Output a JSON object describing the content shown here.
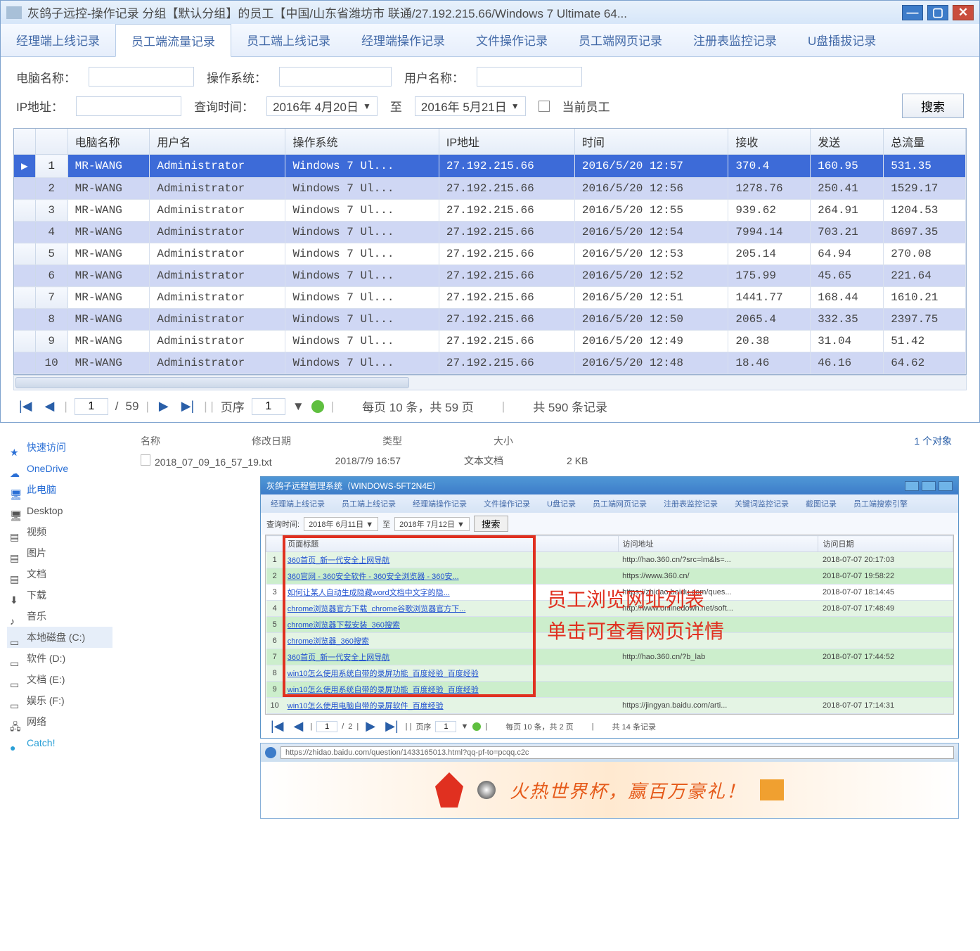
{
  "win1": {
    "title": "灰鸽子远控-操作记录 分组【默认分组】的员工【中国/山东省潍坊市 联通/27.192.215.66/Windows 7 Ultimate 64...",
    "tabs": [
      "经理端上线记录",
      "员工端流量记录",
      "员工端上线记录",
      "经理端操作记录",
      "文件操作记录",
      "员工端网页记录",
      "注册表监控记录",
      "U盘插拔记录"
    ],
    "active_tab": 1,
    "filters": {
      "pc_label": "电脑名称：",
      "os_label": "操作系统：",
      "user_label": "用户名称：",
      "ip_label": "IP地址：",
      "query_label": "查询时间：",
      "date_from": "2016年 4月20日",
      "to": "至",
      "date_to": "2016年 5月21日",
      "cur_emp": "当前员工",
      "search": "搜索"
    },
    "columns": [
      "",
      "",
      "电脑名称",
      "用户名",
      "操作系统",
      "IP地址",
      "时间",
      "接收",
      "发送",
      "总流量"
    ],
    "rows": [
      {
        "n": 1,
        "pc": "MR-WANG",
        "user": "Administrator",
        "os": "Windows 7 Ul...",
        "ip": "27.192.215.66",
        "time": "2016/5/20 12:57",
        "recv": "370.4",
        "send": "160.95",
        "total": "531.35",
        "sel": true
      },
      {
        "n": 2,
        "pc": "MR-WANG",
        "user": "Administrator",
        "os": "Windows 7 Ul...",
        "ip": "27.192.215.66",
        "time": "2016/5/20 12:56",
        "recv": "1278.76",
        "send": "250.41",
        "total": "1529.17",
        "alt": true
      },
      {
        "n": 3,
        "pc": "MR-WANG",
        "user": "Administrator",
        "os": "Windows 7 Ul...",
        "ip": "27.192.215.66",
        "time": "2016/5/20 12:55",
        "recv": "939.62",
        "send": "264.91",
        "total": "1204.53"
      },
      {
        "n": 4,
        "pc": "MR-WANG",
        "user": "Administrator",
        "os": "Windows 7 Ul...",
        "ip": "27.192.215.66",
        "time": "2016/5/20 12:54",
        "recv": "7994.14",
        "send": "703.21",
        "total": "8697.35",
        "alt": true
      },
      {
        "n": 5,
        "pc": "MR-WANG",
        "user": "Administrator",
        "os": "Windows 7 Ul...",
        "ip": "27.192.215.66",
        "time": "2016/5/20 12:53",
        "recv": "205.14",
        "send": "64.94",
        "total": "270.08"
      },
      {
        "n": 6,
        "pc": "MR-WANG",
        "user": "Administrator",
        "os": "Windows 7 Ul...",
        "ip": "27.192.215.66",
        "time": "2016/5/20 12:52",
        "recv": "175.99",
        "send": "45.65",
        "total": "221.64",
        "alt": true
      },
      {
        "n": 7,
        "pc": "MR-WANG",
        "user": "Administrator",
        "os": "Windows 7 Ul...",
        "ip": "27.192.215.66",
        "time": "2016/5/20 12:51",
        "recv": "1441.77",
        "send": "168.44",
        "total": "1610.21"
      },
      {
        "n": 8,
        "pc": "MR-WANG",
        "user": "Administrator",
        "os": "Windows 7 Ul...",
        "ip": "27.192.215.66",
        "time": "2016/5/20 12:50",
        "recv": "2065.4",
        "send": "332.35",
        "total": "2397.75",
        "alt": true
      },
      {
        "n": 9,
        "pc": "MR-WANG",
        "user": "Administrator",
        "os": "Windows 7 Ul...",
        "ip": "27.192.215.66",
        "time": "2016/5/20 12:49",
        "recv": "20.38",
        "send": "31.04",
        "total": "51.42"
      },
      {
        "n": 10,
        "pc": "MR-WANG",
        "user": "Administrator",
        "os": "Windows 7 Ul...",
        "ip": "27.192.215.66",
        "time": "2016/5/20 12:48",
        "recv": "18.46",
        "send": "46.16",
        "total": "64.62",
        "alt": true
      }
    ],
    "pager": {
      "page": "1",
      "total": "59",
      "order_label": "页序",
      "order": "1",
      "per_page": "每页 10 条，共 59 页",
      "records": "共 590 条记录"
    }
  },
  "explorer": {
    "side": [
      {
        "label": "快速访问",
        "color": "#2a6fd6",
        "glyph": "★"
      },
      {
        "label": "OneDrive",
        "color": "#2a6fd6",
        "glyph": "☁"
      },
      {
        "label": "此电脑",
        "color": "#2a6fd6",
        "glyph": "🖥"
      },
      {
        "label": "Desktop",
        "color": "#555",
        "glyph": "🖥"
      },
      {
        "label": "视频",
        "color": "#555",
        "glyph": "▤"
      },
      {
        "label": "图片",
        "color": "#555",
        "glyph": "▤"
      },
      {
        "label": "文档",
        "color": "#555",
        "glyph": "▤"
      },
      {
        "label": "下载",
        "color": "#555",
        "glyph": "⬇"
      },
      {
        "label": "音乐",
        "color": "#555",
        "glyph": "♪"
      },
      {
        "label": "本地磁盘 (C:)",
        "color": "#555",
        "glyph": "▭",
        "sel": true
      },
      {
        "label": "软件 (D:)",
        "color": "#555",
        "glyph": "▭"
      },
      {
        "label": "文档 (E:)",
        "color": "#555",
        "glyph": "▭"
      },
      {
        "label": "娱乐 (F:)",
        "color": "#555",
        "glyph": "▭"
      },
      {
        "label": "网络",
        "color": "#555",
        "glyph": "🖧"
      },
      {
        "label": "Catch!",
        "color": "#2a9fd6",
        "glyph": "●"
      }
    ],
    "headers": [
      "名称",
      "修改日期",
      "类型",
      "大小"
    ],
    "file": {
      "name": "2018_07_09_16_57_19.txt",
      "date": "2018/7/9 16:57",
      "type": "文本文档",
      "size": "2 KB"
    },
    "objcount": "1 个对象"
  },
  "win2": {
    "title": "灰鸽子远程管理系统（WINDOWS-5FT2N4E）",
    "tabs": [
      "经理端上线记录",
      "员工端上线记录",
      "经理端操作记录",
      "文件操作记录",
      "U盘记录",
      "员工端网页记录",
      "注册表监控记录",
      "关键词监控记录",
      "截图记录",
      "员工端搜索引擎"
    ],
    "filter_label": "查询时间:",
    "date_from": "2018年 6月11日",
    "date_to": "2018年 7月12日",
    "search": "搜索",
    "columns": [
      "",
      "页面标题",
      "访问地址",
      "访问日期"
    ],
    "rows": [
      {
        "n": 1,
        "title": "360首页_新一代安全上网导航",
        "url": "http://hao.360.cn/?src=lm&ls=...",
        "date": "2018-07-07 20:17:03",
        "cls": "gb"
      },
      {
        "n": 2,
        "title": "360官网 - 360安全软件 - 360安全浏览器 - 360安...",
        "url": "https://www.360.cn/",
        "date": "2018-07-07 19:58:22",
        "cls": "ga"
      },
      {
        "n": 3,
        "title": "如何让某人自动生成隐藏word文档中文字的隐...",
        "url": "https://zhidao.baidu.com/ques...",
        "date": "2018-07-07 18:14:45",
        "cls": "sel"
      },
      {
        "n": 4,
        "title": "chrome浏览器官方下载_chrome谷歌浏览器官方下...",
        "url": "http://www.onlinedown.net/soft...",
        "date": "2018-07-07 17:48:49",
        "cls": "gb"
      },
      {
        "n": 5,
        "title": "chrome浏览器下载安装_360搜索",
        "url": "",
        "date": "",
        "cls": "ga"
      },
      {
        "n": 6,
        "title": "chrome浏览器_360搜索",
        "url": "",
        "date": "",
        "cls": "gb"
      },
      {
        "n": 7,
        "title": "360首页_新一代安全上网导航",
        "url": "http://hao.360.cn/?b_lab",
        "date": "2018-07-07 17:44:52",
        "cls": "ga"
      },
      {
        "n": 8,
        "title": "win10怎么使用系统自带的录屏功能_百度经验_百度经验",
        "url": "",
        "date": "",
        "cls": "gb"
      },
      {
        "n": 9,
        "title": "win10怎么使用系统自带的录屏功能_百度经验_百度经验",
        "url": "",
        "date": "",
        "cls": "ga"
      },
      {
        "n": 10,
        "title": "win10怎么使用电脑自带的录屏软件_百度经验",
        "url": "https://jingyan.baidu.com/arti...",
        "date": "2018-07-07 17:14:31",
        "cls": "gb"
      }
    ],
    "overlay": {
      "line1": "员工浏览网址列表",
      "line2": "单击可查看网页详情"
    },
    "pager": {
      "page": "1",
      "total": "2",
      "order_label": "页序",
      "order": "1",
      "per_page": "每页 10 条，共 2 页",
      "records": "共 14 条记录"
    }
  },
  "browser": {
    "url": "https://zhidao.baidu.com/question/1433165013.html?qq-pf-to=pcqq.c2c",
    "banner_text": "火热世界杯，赢百万豪礼！"
  }
}
